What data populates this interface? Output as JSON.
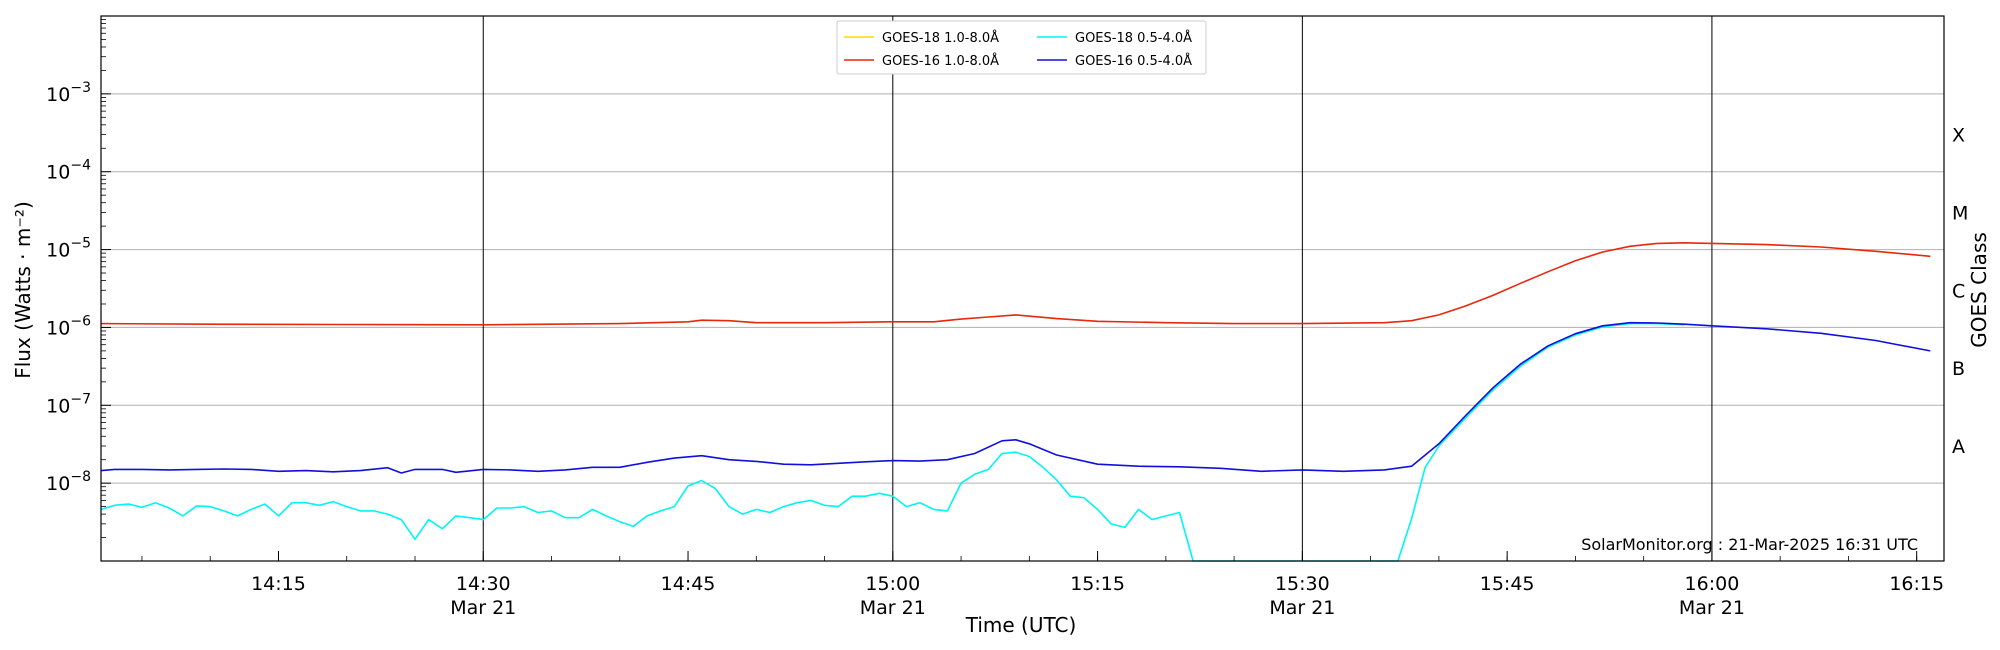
{
  "chart_data": {
    "type": "line",
    "xlabel": "Time (UTC)",
    "ylabel": "Flux (Watts · m⁻²)",
    "ylabel_right": "GOES Class",
    "watermark": "SolarMonitor.org : 21-Mar-2025 16:31 UTC",
    "x_range": [
      "14:02",
      "16:17"
    ],
    "y_scale": "log",
    "ylim": [
      1e-09,
      0.01
    ],
    "y_ticks": [
      {
        "value": 1e-08,
        "base": "10",
        "exp": "−8"
      },
      {
        "value": 1e-07,
        "base": "10",
        "exp": "−7"
      },
      {
        "value": 1e-06,
        "base": "10",
        "exp": "−6"
      },
      {
        "value": 1e-05,
        "base": "10",
        "exp": "−5"
      },
      {
        "value": 0.0001,
        "base": "10",
        "exp": "−4"
      },
      {
        "value": 0.001,
        "base": "10",
        "exp": "−3"
      }
    ],
    "x_ticks": [
      {
        "time": "14:15",
        "label": "14:15",
        "date": ""
      },
      {
        "time": "14:30",
        "label": "14:30",
        "date": "Mar 21"
      },
      {
        "time": "14:45",
        "label": "14:45",
        "date": ""
      },
      {
        "time": "15:00",
        "label": "15:00",
        "date": "Mar 21"
      },
      {
        "time": "15:15",
        "label": "15:15",
        "date": ""
      },
      {
        "time": "15:30",
        "label": "15:30",
        "date": "Mar 21"
      },
      {
        "time": "15:45",
        "label": "15:45",
        "date": ""
      },
      {
        "time": "16:00",
        "label": "16:00",
        "date": "Mar 21"
      },
      {
        "time": "16:15",
        "label": "16:15",
        "date": ""
      }
    ],
    "vertical_lines": [
      "14:30",
      "15:00",
      "15:30",
      "16:00"
    ],
    "goes_classes": [
      {
        "label": "X",
        "value": 0.0003
      },
      {
        "label": "M",
        "value": 3e-05
      },
      {
        "label": "C",
        "value": 3e-06
      },
      {
        "label": "B",
        "value": 3e-07
      },
      {
        "label": "A",
        "value": 3e-08
      }
    ],
    "legend_position": "top-center",
    "grid": "horizontal",
    "series": [
      {
        "name": "GOES-18 1.0-8.0Å",
        "color": "#ffd700",
        "points": []
      },
      {
        "name": "GOES-16 1.0-8.0Å",
        "color": "#e8280a",
        "points": [
          [
            "14:02",
            1.12e-06
          ],
          [
            "14:10",
            1.1e-06
          ],
          [
            "14:20",
            1.09e-06
          ],
          [
            "14:30",
            1.08e-06
          ],
          [
            "14:40",
            1.12e-06
          ],
          [
            "14:45",
            1.18e-06
          ],
          [
            "14:46",
            1.24e-06
          ],
          [
            "14:48",
            1.22e-06
          ],
          [
            "14:50",
            1.15e-06
          ],
          [
            "14:55",
            1.15e-06
          ],
          [
            "15:00",
            1.18e-06
          ],
          [
            "15:03",
            1.18e-06
          ],
          [
            "15:05",
            1.28e-06
          ],
          [
            "15:07",
            1.36e-06
          ],
          [
            "15:09",
            1.45e-06
          ],
          [
            "15:12",
            1.3e-06
          ],
          [
            "15:15",
            1.2e-06
          ],
          [
            "15:20",
            1.15e-06
          ],
          [
            "15:25",
            1.12e-06
          ],
          [
            "15:30",
            1.12e-06
          ],
          [
            "15:36",
            1.15e-06
          ],
          [
            "15:38",
            1.22e-06
          ],
          [
            "15:40",
            1.45e-06
          ],
          [
            "15:42",
            1.9e-06
          ],
          [
            "15:44",
            2.6e-06
          ],
          [
            "15:46",
            3.7e-06
          ],
          [
            "15:48",
            5.2e-06
          ],
          [
            "15:50",
            7.2e-06
          ],
          [
            "15:52",
            9.3e-06
          ],
          [
            "15:54",
            1.1e-05
          ],
          [
            "15:56",
            1.2e-05
          ],
          [
            "15:58",
            1.22e-05
          ],
          [
            "16:00",
            1.2e-05
          ],
          [
            "16:04",
            1.16e-05
          ],
          [
            "16:08",
            1.08e-05
          ],
          [
            "16:12",
            9.5e-06
          ],
          [
            "16:16",
            8.2e-06
          ]
        ]
      },
      {
        "name": "GOES-18 0.5-4.0Å",
        "color": "#00f5f5",
        "points": [
          [
            "14:02",
            4.6e-09
          ],
          [
            "14:03",
            5.2e-09
          ],
          [
            "14:04",
            5.4e-09
          ],
          [
            "14:05",
            4.9e-09
          ],
          [
            "14:06",
            5.6e-09
          ],
          [
            "14:07",
            4.8e-09
          ],
          [
            "14:08",
            3.8e-09
          ],
          [
            "14:09",
            5.1e-09
          ],
          [
            "14:10",
            5e-09
          ],
          [
            "14:11",
            4.4e-09
          ],
          [
            "14:12",
            3.8e-09
          ],
          [
            "14:13",
            4.6e-09
          ],
          [
            "14:14",
            5.4e-09
          ],
          [
            "14:15",
            3.8e-09
          ],
          [
            "14:16",
            5.6e-09
          ],
          [
            "14:17",
            5.6e-09
          ],
          [
            "14:18",
            5.2e-09
          ],
          [
            "14:19",
            5.8e-09
          ],
          [
            "14:20",
            5e-09
          ],
          [
            "14:21",
            4.4e-09
          ],
          [
            "14:22",
            4.4e-09
          ],
          [
            "14:23",
            4e-09
          ],
          [
            "14:24",
            3.4e-09
          ],
          [
            "14:25",
            1.9e-09
          ],
          [
            "14:26",
            3.4e-09
          ],
          [
            "14:27",
            2.6e-09
          ],
          [
            "14:28",
            3.8e-09
          ],
          [
            "14:29",
            3.6e-09
          ],
          [
            "14:30",
            3.4e-09
          ],
          [
            "14:31",
            4.8e-09
          ],
          [
            "14:32",
            4.8e-09
          ],
          [
            "14:33",
            5e-09
          ],
          [
            "14:34",
            4.2e-09
          ],
          [
            "14:35",
            4.4e-09
          ],
          [
            "14:36",
            3.6e-09
          ],
          [
            "14:37",
            3.6e-09
          ],
          [
            "14:38",
            4.6e-09
          ],
          [
            "14:39",
            3.8e-09
          ],
          [
            "14:40",
            3.2e-09
          ],
          [
            "14:41",
            2.8e-09
          ],
          [
            "14:42",
            3.8e-09
          ],
          [
            "14:43",
            4.4e-09
          ],
          [
            "14:44",
            5e-09
          ],
          [
            "14:45",
            9.2e-09
          ],
          [
            "14:46",
            1.08e-08
          ],
          [
            "14:47",
            8.5e-09
          ],
          [
            "14:48",
            5e-09
          ],
          [
            "14:49",
            4e-09
          ],
          [
            "14:50",
            4.6e-09
          ],
          [
            "14:51",
            4.2e-09
          ],
          [
            "14:52",
            5e-09
          ],
          [
            "14:53",
            5.6e-09
          ],
          [
            "14:54",
            6e-09
          ],
          [
            "14:55",
            5.2e-09
          ],
          [
            "14:56",
            5e-09
          ],
          [
            "14:57",
            6.8e-09
          ],
          [
            "14:58",
            6.8e-09
          ],
          [
            "14:59",
            7.4e-09
          ],
          [
            "15:00",
            6.8e-09
          ],
          [
            "15:01",
            5e-09
          ],
          [
            "15:02",
            5.6e-09
          ],
          [
            "15:03",
            4.6e-09
          ],
          [
            "15:04",
            4.4e-09
          ],
          [
            "15:05",
            1e-08
          ],
          [
            "15:06",
            1.3e-08
          ],
          [
            "15:07",
            1.5e-08
          ],
          [
            "15:08",
            2.4e-08
          ],
          [
            "15:09",
            2.5e-08
          ],
          [
            "15:10",
            2.2e-08
          ],
          [
            "15:11",
            1.6e-08
          ],
          [
            "15:12",
            1.1e-08
          ],
          [
            "15:13",
            6.8e-09
          ],
          [
            "15:14",
            6.5e-09
          ],
          [
            "15:15",
            4.6e-09
          ],
          [
            "15:16",
            3e-09
          ],
          [
            "15:17",
            2.7e-09
          ],
          [
            "15:18",
            4.6e-09
          ],
          [
            "15:19",
            3.4e-09
          ],
          [
            "15:20",
            3.8e-09
          ],
          [
            "15:21",
            4.2e-09
          ],
          [
            "15:22",
            1e-09
          ],
          [
            "15:37",
            1e-09
          ],
          [
            "15:38",
            3.5e-09
          ],
          [
            "15:39",
            1.6e-08
          ],
          [
            "15:40",
            3e-08
          ],
          [
            "15:42",
            7e-08
          ],
          [
            "15:44",
            1.6e-07
          ],
          [
            "15:46",
            3.2e-07
          ],
          [
            "15:48",
            5.6e-07
          ],
          [
            "15:50",
            8e-07
          ],
          [
            "15:52",
            1.02e-06
          ],
          [
            "15:54",
            1.12e-06
          ],
          [
            "15:56",
            1.12e-06
          ],
          [
            "15:58",
            1.08e-06
          ]
        ]
      },
      {
        "name": "GOES-16 0.5-4.0Å",
        "color": "#1010dd",
        "points": [
          [
            "14:02",
            1.45e-08
          ],
          [
            "14:03",
            1.5e-08
          ],
          [
            "14:05",
            1.5e-08
          ],
          [
            "14:07",
            1.48e-08
          ],
          [
            "14:09",
            1.5e-08
          ],
          [
            "14:11",
            1.52e-08
          ],
          [
            "14:13",
            1.5e-08
          ],
          [
            "14:15",
            1.42e-08
          ],
          [
            "14:17",
            1.45e-08
          ],
          [
            "14:19",
            1.4e-08
          ],
          [
            "14:21",
            1.45e-08
          ],
          [
            "14:23",
            1.58e-08
          ],
          [
            "14:24",
            1.35e-08
          ],
          [
            "14:25",
            1.5e-08
          ],
          [
            "14:27",
            1.5e-08
          ],
          [
            "14:28",
            1.38e-08
          ],
          [
            "14:30",
            1.5e-08
          ],
          [
            "14:32",
            1.48e-08
          ],
          [
            "14:34",
            1.42e-08
          ],
          [
            "14:36",
            1.48e-08
          ],
          [
            "14:38",
            1.6e-08
          ],
          [
            "14:40",
            1.6e-08
          ],
          [
            "14:42",
            1.85e-08
          ],
          [
            "14:44",
            2.1e-08
          ],
          [
            "14:46",
            2.25e-08
          ],
          [
            "14:48",
            2e-08
          ],
          [
            "14:50",
            1.9e-08
          ],
          [
            "14:52",
            1.75e-08
          ],
          [
            "14:54",
            1.72e-08
          ],
          [
            "14:56",
            1.8e-08
          ],
          [
            "14:58",
            1.88e-08
          ],
          [
            "15:00",
            1.95e-08
          ],
          [
            "15:02",
            1.92e-08
          ],
          [
            "15:04",
            2e-08
          ],
          [
            "15:06",
            2.4e-08
          ],
          [
            "15:08",
            3.5e-08
          ],
          [
            "15:09",
            3.6e-08
          ],
          [
            "15:10",
            3.2e-08
          ],
          [
            "15:12",
            2.3e-08
          ],
          [
            "15:15",
            1.75e-08
          ],
          [
            "15:18",
            1.65e-08
          ],
          [
            "15:21",
            1.62e-08
          ],
          [
            "15:24",
            1.55e-08
          ],
          [
            "15:27",
            1.42e-08
          ],
          [
            "15:30",
            1.48e-08
          ],
          [
            "15:33",
            1.42e-08
          ],
          [
            "15:36",
            1.48e-08
          ],
          [
            "15:38",
            1.65e-08
          ],
          [
            "15:40",
            3.2e-08
          ],
          [
            "15:42",
            7.5e-08
          ],
          [
            "15:44",
            1.7e-07
          ],
          [
            "15:46",
            3.4e-07
          ],
          [
            "15:48",
            5.8e-07
          ],
          [
            "15:50",
            8.3e-07
          ],
          [
            "15:52",
            1.05e-06
          ],
          [
            "15:54",
            1.15e-06
          ],
          [
            "15:56",
            1.14e-06
          ],
          [
            "15:58",
            1.1e-06
          ],
          [
            "16:00",
            1.05e-06
          ],
          [
            "16:04",
            9.6e-07
          ],
          [
            "16:08",
            8.4e-07
          ],
          [
            "16:12",
            6.8e-07
          ],
          [
            "16:16",
            5e-07
          ]
        ]
      }
    ]
  }
}
